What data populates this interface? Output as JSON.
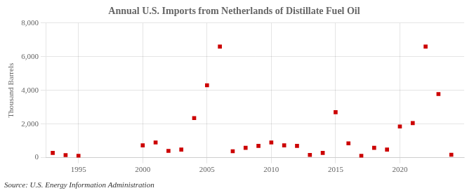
{
  "chart_data": {
    "type": "scatter",
    "title": "Annual U.S. Imports from Netherlands of Distillate Fuel Oil",
    "ylabel": "Thousand Barrels",
    "annotation": "Source: U.S. Energy Information Administration",
    "x": [
      1993,
      1994,
      1995,
      2000,
      2001,
      2002,
      2003,
      2004,
      2005,
      2006,
      2007,
      2008,
      2009,
      2010,
      2011,
      2012,
      2013,
      2014,
      2015,
      2016,
      2017,
      2018,
      2019,
      2020,
      2021,
      2022,
      2023,
      2024
    ],
    "values": [
      280,
      150,
      100,
      730,
      900,
      400,
      480,
      2350,
      4300,
      6600,
      380,
      580,
      700,
      900,
      730,
      700,
      160,
      280,
      2700,
      850,
      100,
      580,
      480,
      1850,
      2050,
      6600,
      3780,
      170
    ],
    "color": "#cc0000",
    "marker": "square",
    "xlim": [
      1992.5,
      2025
    ],
    "ylim": [
      0,
      8000
    ],
    "xticks": [
      1995,
      2000,
      2005,
      2010,
      2015,
      2020
    ],
    "yticks": [
      0,
      {
        "value": 2000,
        "label": "2,000"
      },
      {
        "value": 4000,
        "label": "4,000"
      },
      {
        "value": 6000,
        "label": "6,000"
      },
      {
        "value": 8000,
        "label": "8,000"
      }
    ],
    "grid": true
  }
}
